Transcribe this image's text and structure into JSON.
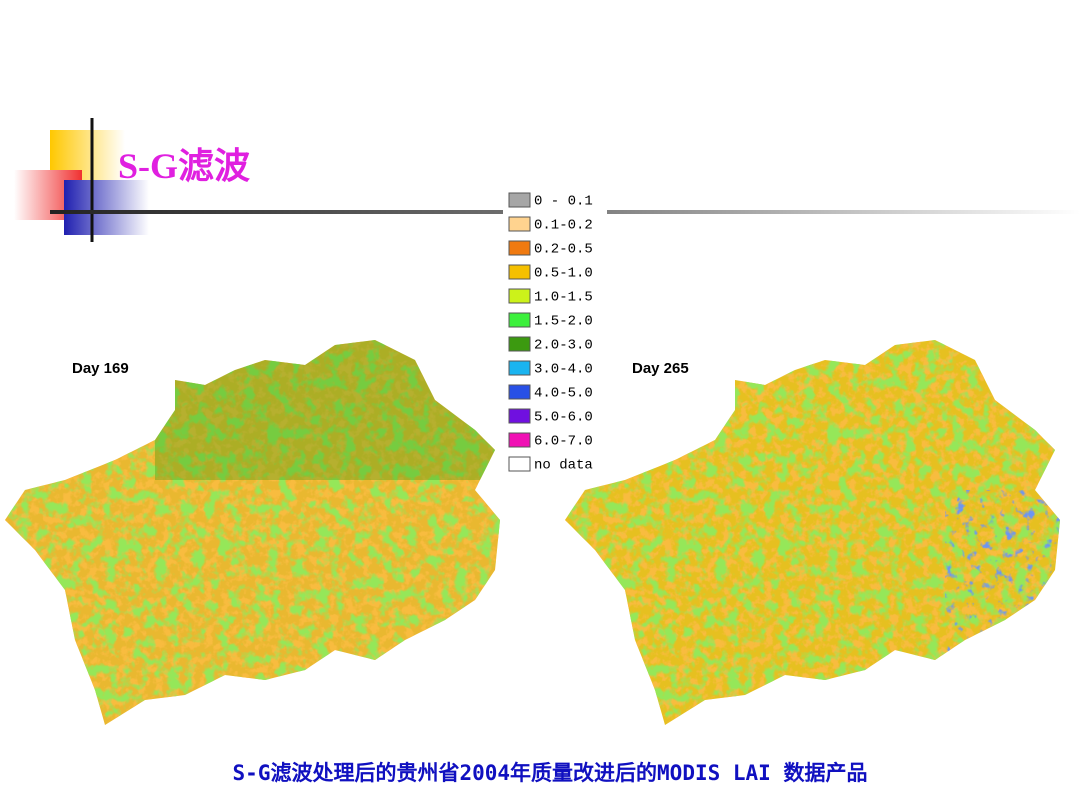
{
  "title": "S-G滤波",
  "legend": [
    {
      "label": "0 - 0.1",
      "color": "#a6a6a6"
    },
    {
      "label": "0.1-0.2",
      "color": "#ffd38f"
    },
    {
      "label": "0.2-0.5",
      "color": "#f07a10"
    },
    {
      "label": "0.5-1.0",
      "color": "#f5c000"
    },
    {
      "label": "1.0-1.5",
      "color": "#ccf21a"
    },
    {
      "label": "1.5-2.0",
      "color": "#3cf03c"
    },
    {
      "label": "2.0-3.0",
      "color": "#3c9a10"
    },
    {
      "label": "3.0-4.0",
      "color": "#1ab4f0"
    },
    {
      "label": "4.0-5.0",
      "color": "#2850e6"
    },
    {
      "label": "5.0-6.0",
      "color": "#7010e0"
    },
    {
      "label": "6.0-7.0",
      "color": "#f010b4"
    },
    {
      "label": "no data",
      "color": "#ffffff"
    }
  ],
  "maps": [
    {
      "label": "Day 169"
    },
    {
      "label": "Day 265"
    }
  ],
  "caption": "S-G滤波处理后的贵州省2004年质量改进后的MODIS LAI 数据产品"
}
